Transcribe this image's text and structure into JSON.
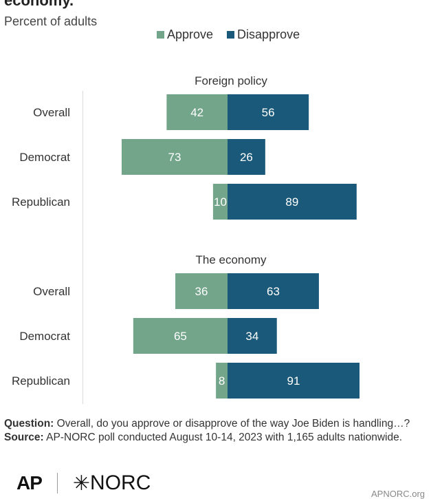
{
  "header": {
    "title": "economy.",
    "subtitle": "Percent of adults"
  },
  "legend": {
    "approve": "Approve",
    "disapprove": "Disapprove"
  },
  "colors": {
    "approve": "#73a58b",
    "disapprove": "#1a5979",
    "axis": "#d9d9d9"
  },
  "chart_data": {
    "type": "bar",
    "orientation": "horizontal-diverging",
    "series": [
      {
        "name": "Approve",
        "color": "#73a58b"
      },
      {
        "name": "Disapprove",
        "color": "#1a5979"
      }
    ],
    "groups": [
      {
        "title": "Foreign policy",
        "rows": [
          {
            "label": "Overall",
            "approve": 42,
            "disapprove": 56
          },
          {
            "label": "Democrat",
            "approve": 73,
            "disapprove": 26
          },
          {
            "label": "Republican",
            "approve": 10,
            "disapprove": 89
          }
        ]
      },
      {
        "title": "The economy",
        "rows": [
          {
            "label": "Overall",
            "approve": 36,
            "disapprove": 63
          },
          {
            "label": "Democrat",
            "approve": 65,
            "disapprove": 34
          },
          {
            "label": "Republican",
            "approve": 8,
            "disapprove": 91
          }
        ]
      }
    ]
  },
  "footer": {
    "question_label": "Question:",
    "question_text": "Overall, do you approve or disapprove of the way Joe Biden is handling…?",
    "source_label": "Source:",
    "source_text": "AP-NORC poll conducted August 10-14, 2023 with 1,165 adults nationwide.",
    "logo_ap": "AP",
    "logo_norc": "NORC",
    "site": "APNORC.org"
  }
}
